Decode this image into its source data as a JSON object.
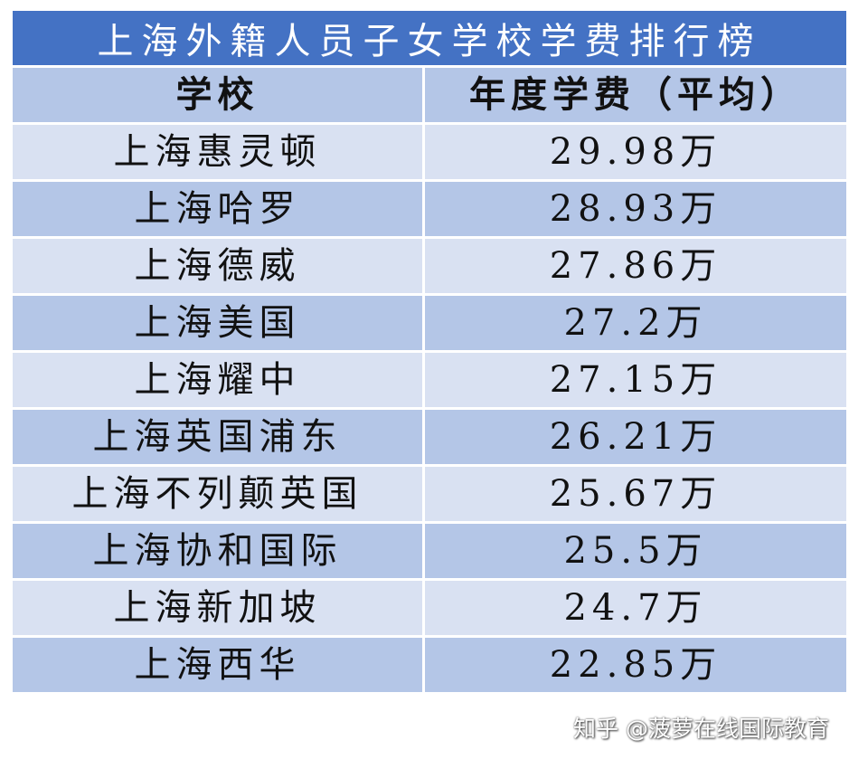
{
  "title": "上海外籍人员子女学校学费排行榜",
  "headers": {
    "school": "学校",
    "fee": "年度学费（平均）"
  },
  "rows": [
    {
      "school": "上海惠灵顿",
      "fee": "29.98万"
    },
    {
      "school": "上海哈罗",
      "fee": "28.93万"
    },
    {
      "school": "上海德威",
      "fee": "27.86万"
    },
    {
      "school": "上海美国",
      "fee": "27.2万"
    },
    {
      "school": "上海耀中",
      "fee": "27.15万"
    },
    {
      "school": "上海英国浦东",
      "fee": "26.21万"
    },
    {
      "school": "上海不列颠英国",
      "fee": "25.67万"
    },
    {
      "school": "上海协和国际",
      "fee": "25.5万"
    },
    {
      "school": "上海新加坡",
      "fee": "24.7万"
    },
    {
      "school": "上海西华",
      "fee": "22.85万"
    }
  ],
  "watermark": "知乎 @菠萝在线国际教育",
  "colors": {
    "title_bg": "#4472C4",
    "header_bg": "#B4C6E7",
    "row_light": "#D9E1F2",
    "row_dark": "#B4C6E7"
  }
}
